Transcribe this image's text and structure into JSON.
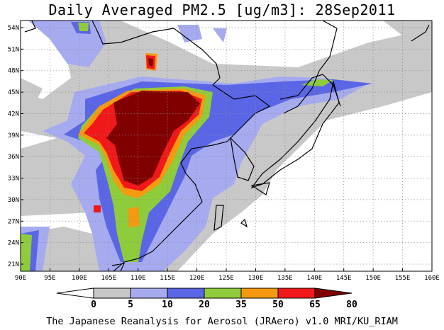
{
  "title": "Daily Averaged PM2.5 [ug/m3]: 28Sep2011",
  "credit": "The Japanese Reanalysis for Aerosol (JRAero) v1.0 MRI/KU_RIAM",
  "map": {
    "lon_labels": [
      "90E",
      "95E",
      "100E",
      "105E",
      "110E",
      "115E",
      "120E",
      "125E",
      "130E",
      "135E",
      "140E",
      "145E",
      "150E",
      "155E",
      "160E"
    ],
    "lat_labels": [
      "54N",
      "51N",
      "48N",
      "45N",
      "42N",
      "39N",
      "36N",
      "33N",
      "30N",
      "27N",
      "24N",
      "21N"
    ],
    "gridlines": "dotted"
  },
  "legend": {
    "levels": [
      "0",
      "5",
      "10",
      "20",
      "35",
      "50",
      "65",
      "80"
    ],
    "colors": [
      "#ffffff",
      "#c8c8c8",
      "#a6abf0",
      "#5a66e6",
      "#8fcc3c",
      "#f59a10",
      "#f01818",
      "#800000"
    ]
  }
}
